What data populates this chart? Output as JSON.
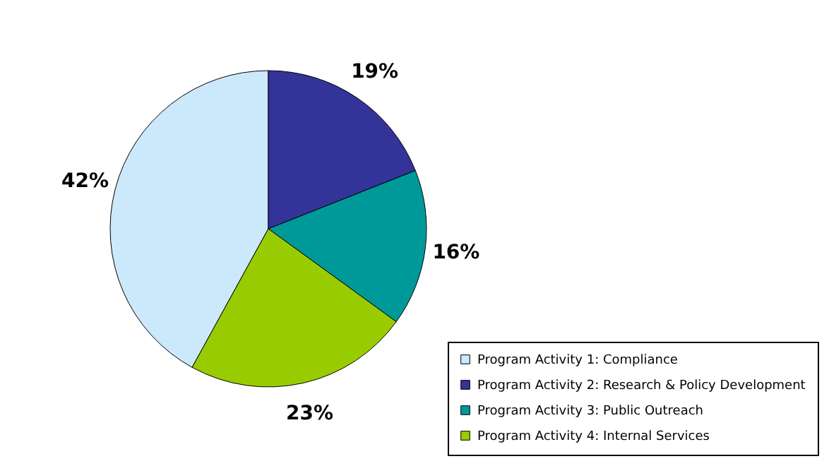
{
  "chart_data": {
    "type": "pie",
    "categories": [
      "Program Activity 1: Compliance",
      "Program Activity 2: Research & Policy Development",
      "Program Activity 3: Public Outreach",
      "Program Activity 4: Internal Services"
    ],
    "values": [
      42,
      19,
      16,
      23
    ],
    "colors": [
      "#cce8fb",
      "#333399",
      "#009999",
      "#99cc00"
    ],
    "value_labels": [
      "42%",
      "19%",
      "16%",
      "23%"
    ],
    "legend": "bottom right"
  }
}
